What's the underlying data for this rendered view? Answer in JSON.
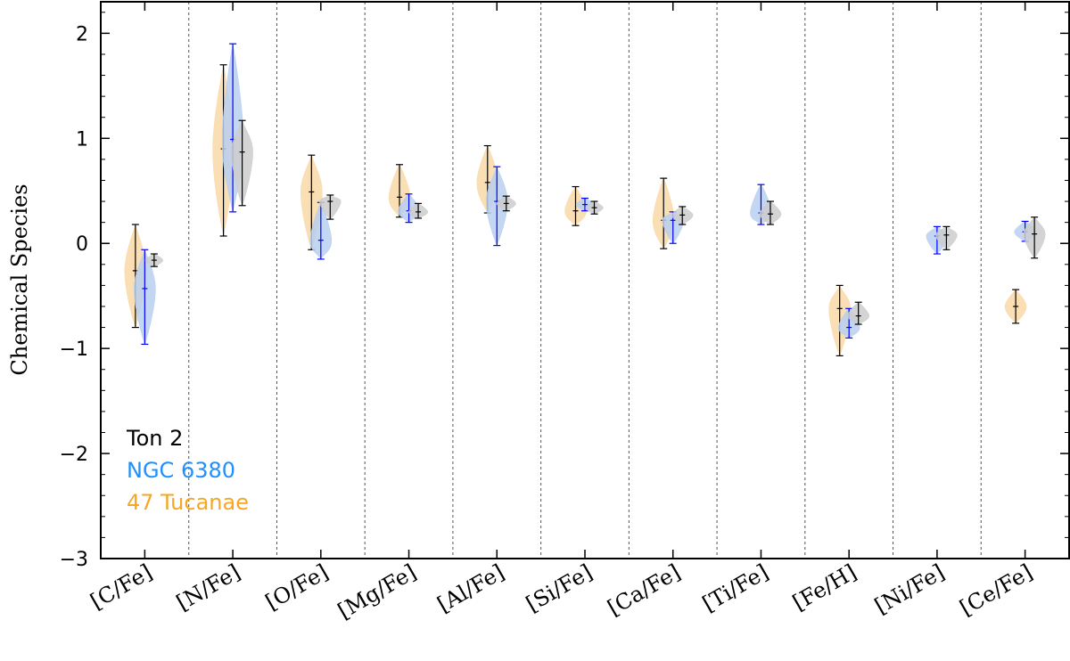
{
  "chart_data": {
    "type": "violin",
    "ylabel": "Chemical Species",
    "xlabel": "",
    "ylim": [
      -3,
      2.3
    ],
    "yticks": [
      {
        "value": 2,
        "label": "2"
      },
      {
        "value": 1,
        "label": "1"
      },
      {
        "value": 0,
        "label": "0"
      },
      {
        "value": -1,
        "label": "−1"
      },
      {
        "value": -2,
        "label": "−2"
      },
      {
        "value": -3,
        "label": "−3"
      }
    ],
    "categories": [
      "[C/Fe]",
      "[N/Fe]",
      "[O/Fe]",
      "[Mg/Fe]",
      "[Al/Fe]",
      "[Si/Fe]",
      "[Ca/Fe]",
      "[Ti/Fe]",
      "[Fe/H]",
      "[Ni/Fe]",
      "[Ce/Fe]"
    ],
    "grid": "vertical dashed separators",
    "legend_position": "lower-left",
    "series": [
      {
        "name": "47 Tucanae",
        "fill": "#f9d9a8",
        "line": "#000000",
        "points": [
          {
            "min": -0.8,
            "median": -0.26,
            "max": 0.18
          },
          {
            "min": 0.07,
            "median": 0.9,
            "max": 1.7
          },
          {
            "min": -0.06,
            "median": 0.49,
            "max": 0.84
          },
          {
            "min": 0.25,
            "median": 0.44,
            "max": 0.75
          },
          {
            "min": 0.29,
            "median": 0.58,
            "max": 0.93
          },
          {
            "min": 0.17,
            "median": 0.31,
            "max": 0.54
          },
          {
            "min": -0.05,
            "median": 0.22,
            "max": 0.62
          },
          null,
          {
            "min": -1.07,
            "median": -0.62,
            "max": -0.4
          },
          null,
          {
            "min": -0.76,
            "median": -0.6,
            "max": -0.44
          }
        ]
      },
      {
        "name": "NGC 6380",
        "fill": "#b8cff0",
        "line": "#0000ff",
        "points": [
          {
            "min": -0.96,
            "median": -0.43,
            "max": -0.06
          },
          {
            "min": 0.3,
            "median": 0.99,
            "max": 1.9
          },
          {
            "min": -0.15,
            "median": 0.03,
            "max": 0.39
          },
          {
            "min": 0.2,
            "median": 0.31,
            "max": 0.47
          },
          {
            "min": -0.02,
            "median": 0.4,
            "max": 0.73
          },
          {
            "min": 0.31,
            "median": 0.37,
            "max": 0.43
          },
          {
            "min": 0.0,
            "median": 0.22,
            "max": 0.3
          },
          {
            "min": 0.18,
            "median": 0.29,
            "max": 0.56
          },
          {
            "min": -0.9,
            "median": -0.8,
            "max": -0.62
          },
          {
            "min": -0.1,
            "median": 0.07,
            "max": 0.16
          },
          {
            "min": 0.02,
            "median": 0.11,
            "max": 0.21
          }
        ]
      },
      {
        "name": "Ton 2",
        "fill": "#cccccc",
        "line": "#000000",
        "points": [
          {
            "min": -0.22,
            "median": -0.16,
            "max": -0.1
          },
          {
            "min": 0.36,
            "median": 0.87,
            "max": 1.17
          },
          {
            "min": 0.23,
            "median": 0.4,
            "max": 0.46
          },
          {
            "min": 0.24,
            "median": 0.3,
            "max": 0.38
          },
          {
            "min": 0.31,
            "median": 0.38,
            "max": 0.45
          },
          {
            "min": 0.28,
            "median": 0.34,
            "max": 0.4
          },
          {
            "min": 0.18,
            "median": 0.27,
            "max": 0.35
          },
          {
            "min": 0.18,
            "median": 0.28,
            "max": 0.4
          },
          {
            "min": -0.77,
            "median": -0.69,
            "max": -0.56
          },
          {
            "min": -0.06,
            "median": 0.08,
            "max": 0.16
          },
          {
            "min": -0.14,
            "median": 0.09,
            "max": 0.25
          }
        ]
      }
    ],
    "legend": [
      {
        "label": "Ton 2",
        "color": "#000000"
      },
      {
        "label": "NGC 6380",
        "color": "#1e90ff"
      },
      {
        "label": "47 Tucanae",
        "color": "#f5a623"
      }
    ]
  }
}
